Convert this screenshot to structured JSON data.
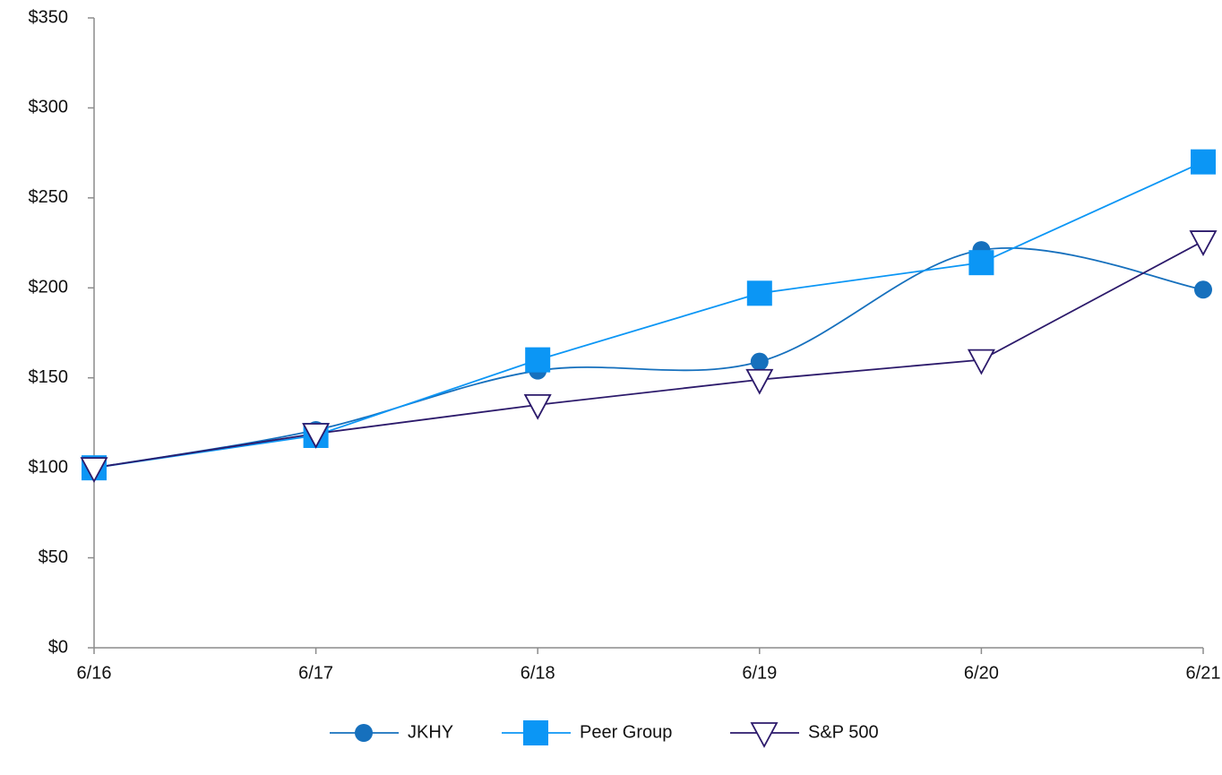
{
  "chart_data": {
    "type": "line",
    "categories": [
      "6/16",
      "6/17",
      "6/18",
      "6/19",
      "6/20",
      "6/21"
    ],
    "ylim": [
      0,
      350
    ],
    "yticks": [
      {
        "value": 0,
        "label": "$0"
      },
      {
        "value": 50,
        "label": "$50"
      },
      {
        "value": 100,
        "label": "$100"
      },
      {
        "value": 150,
        "label": "$150"
      },
      {
        "value": 200,
        "label": "$200"
      },
      {
        "value": 250,
        "label": "$250"
      },
      {
        "value": 300,
        "label": "$300"
      },
      {
        "value": 350,
        "label": "$350"
      }
    ],
    "grid": false,
    "legend": "bottom",
    "series": [
      {
        "name": "JKHY",
        "color": "#1670bd",
        "marker": "circle",
        "smooth": true,
        "values": [
          100,
          121,
          154,
          159,
          221,
          199
        ]
      },
      {
        "name": "Peer Group",
        "color": "#0b96f5",
        "marker": "square",
        "smooth": false,
        "values": [
          100,
          118,
          160,
          197,
          214,
          270
        ]
      },
      {
        "name": "S&P 500",
        "color": "#2c1a6b",
        "marker": "triangle-down",
        "smooth": false,
        "values": [
          100,
          119,
          135,
          149,
          160,
          226
        ]
      }
    ]
  }
}
